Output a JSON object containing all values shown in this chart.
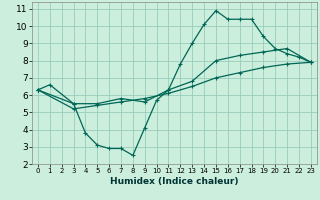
{
  "xlabel": "Humidex (Indice chaleur)",
  "bg_color": "#cceedd",
  "grid_color": "#99ccbb",
  "line_color": "#006655",
  "xlim": [
    -0.5,
    23.5
  ],
  "ylim": [
    2,
    11.4
  ],
  "xticks": [
    0,
    1,
    2,
    3,
    4,
    5,
    6,
    7,
    8,
    9,
    10,
    11,
    12,
    13,
    14,
    15,
    16,
    17,
    18,
    19,
    20,
    21,
    22,
    23
  ],
  "yticks": [
    2,
    3,
    4,
    5,
    6,
    7,
    8,
    9,
    10,
    11
  ],
  "line1_x": [
    0,
    1,
    3,
    4,
    5,
    6,
    7,
    8,
    9,
    10,
    11,
    12,
    13,
    14,
    15,
    16,
    17,
    18,
    19,
    20,
    21,
    22,
    23
  ],
  "line1_y": [
    6.3,
    6.6,
    5.5,
    3.8,
    3.1,
    2.9,
    2.9,
    2.5,
    4.1,
    5.7,
    6.3,
    7.8,
    9.0,
    10.1,
    10.9,
    10.4,
    10.4,
    10.4,
    9.4,
    8.7,
    8.4,
    8.2,
    7.9
  ],
  "line2_x": [
    0,
    3,
    5,
    7,
    9,
    11,
    13,
    15,
    17,
    19,
    21,
    23
  ],
  "line2_y": [
    6.3,
    5.5,
    5.5,
    5.8,
    5.6,
    6.3,
    6.8,
    8.0,
    8.3,
    8.5,
    8.7,
    7.9
  ],
  "line3_x": [
    0,
    3,
    5,
    7,
    9,
    11,
    13,
    15,
    17,
    19,
    21,
    23
  ],
  "line3_y": [
    6.3,
    5.2,
    5.4,
    5.6,
    5.8,
    6.1,
    6.5,
    7.0,
    7.3,
    7.6,
    7.8,
    7.9
  ]
}
